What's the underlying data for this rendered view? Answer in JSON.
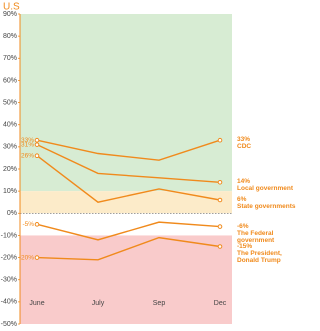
{
  "chart_data": {
    "type": "line",
    "title": "U.S",
    "categories": [
      "June",
      "July",
      "Sep",
      "Dec"
    ],
    "ylim": [
      -50,
      90
    ],
    "yticks": [
      {
        "value": -50,
        "label": "-50%"
      },
      {
        "value": -40,
        "label": "-40%"
      },
      {
        "value": -30,
        "label": "-30%"
      },
      {
        "value": -20,
        "label": "-20%"
      },
      {
        "value": -10,
        "label": "-10%"
      },
      {
        "value": 0,
        "label": "0%"
      },
      {
        "value": 10,
        "label": "10%"
      },
      {
        "value": 20,
        "label": "20%"
      },
      {
        "value": 30,
        "label": "30%"
      },
      {
        "value": 40,
        "label": "40%"
      },
      {
        "value": 50,
        "label": "50%"
      },
      {
        "value": 60,
        "label": "60%"
      },
      {
        "value": 70,
        "label": "70%"
      },
      {
        "value": 80,
        "label": "80%"
      },
      {
        "value": 90,
        "label": "90%"
      }
    ],
    "bands": [
      {
        "from": 10,
        "to": 90,
        "color": "#d7ecd3"
      },
      {
        "from": 0,
        "to": 10,
        "color": "#fcebc9"
      },
      {
        "from": -50,
        "to": -10,
        "color": "#f9cbcb"
      }
    ],
    "series": [
      {
        "name": "CDC",
        "color": "#f08a1c",
        "values": [
          33,
          27,
          24,
          33
        ],
        "value_labels": [
          "33%",
          null,
          null,
          "33%"
        ]
      },
      {
        "name": "Local government",
        "color": "#f08a1c",
        "values": [
          31,
          18,
          16,
          14
        ],
        "value_labels": [
          "31%",
          null,
          null,
          "14%"
        ]
      },
      {
        "name": "State governments",
        "color": "#f08a1c",
        "values": [
          26,
          5,
          11,
          6
        ],
        "value_labels": [
          "26%",
          null,
          null,
          "6%"
        ]
      },
      {
        "name": "The Federal government",
        "color": "#f08a1c",
        "values": [
          -5,
          -12,
          -4,
          -6
        ],
        "value_labels": [
          "-5%",
          null,
          null,
          "-6%"
        ]
      },
      {
        "name": "The President, Donald Trump",
        "color": "#f08a1c",
        "values": [
          -20,
          -21,
          -11,
          -15
        ],
        "value_labels": [
          "-20%",
          null,
          null,
          "-15%"
        ]
      }
    ]
  }
}
